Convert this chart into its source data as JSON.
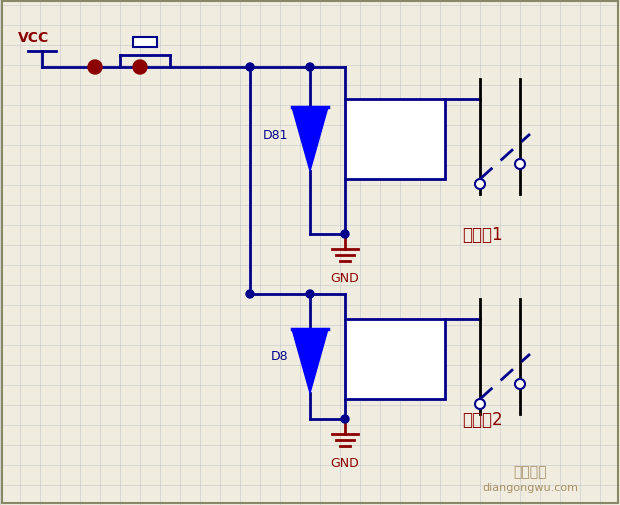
{
  "bg_color": "#f0ede0",
  "grid_color": "#cccccc",
  "wire_color": "#00008B",
  "dark_red": "#8B0000",
  "vcc_label": "VCC",
  "gnd_label": "GND",
  "relay1_label": "继电器1",
  "relay2_label": "继电器2",
  "d81_label": "D81",
  "d8_label": "D8",
  "watermark_line1": "电工之屋",
  "watermark_line2": "diangongwu.com",
  "figsize": [
    6.2,
    5.06
  ],
  "dpi": 100
}
